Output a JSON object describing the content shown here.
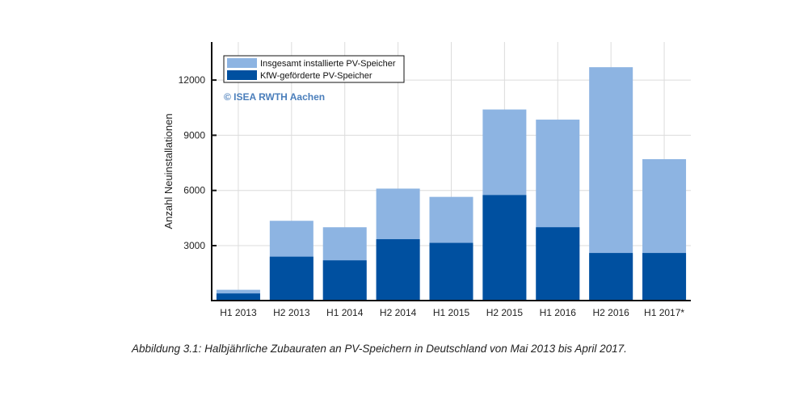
{
  "chart_data": {
    "type": "bar",
    "stacked": "overlay",
    "categories": [
      "H1 2013",
      "H2 2013",
      "H1 2014",
      "H2 2014",
      "H1 2015",
      "H2 2015",
      "H1 2016",
      "H2 2016",
      "H1 2017*"
    ],
    "series": [
      {
        "name": "Insgesamt installierte PV-Speicher",
        "color": "#8db4e2",
        "values": [
          600,
          4350,
          4000,
          6100,
          5650,
          10400,
          9850,
          12700,
          7700
        ]
      },
      {
        "name": "KfW-geförderte PV-Speicher",
        "color": "#0050a0",
        "values": [
          400,
          2400,
          2200,
          3350,
          3150,
          5750,
          4000,
          2600,
          2600
        ]
      }
    ],
    "title": "",
    "xlabel": "",
    "ylabel": "Anzahl Neuinstallationen",
    "ylim": [
      0,
      14000
    ],
    "yticks": [
      3000,
      6000,
      9000,
      12000
    ],
    "ytick_labels": [
      "3000",
      "6000",
      "9000",
      "12000"
    ],
    "grid": true,
    "legend": {
      "placement": "top-left"
    },
    "annotations": [
      "© ISEA RWTH Aachen"
    ]
  },
  "caption": "Abbildung 3.1: Halbjährliche Zubauraten an PV-Speichern in Deutschland von Mai 2013 bis April 2017."
}
